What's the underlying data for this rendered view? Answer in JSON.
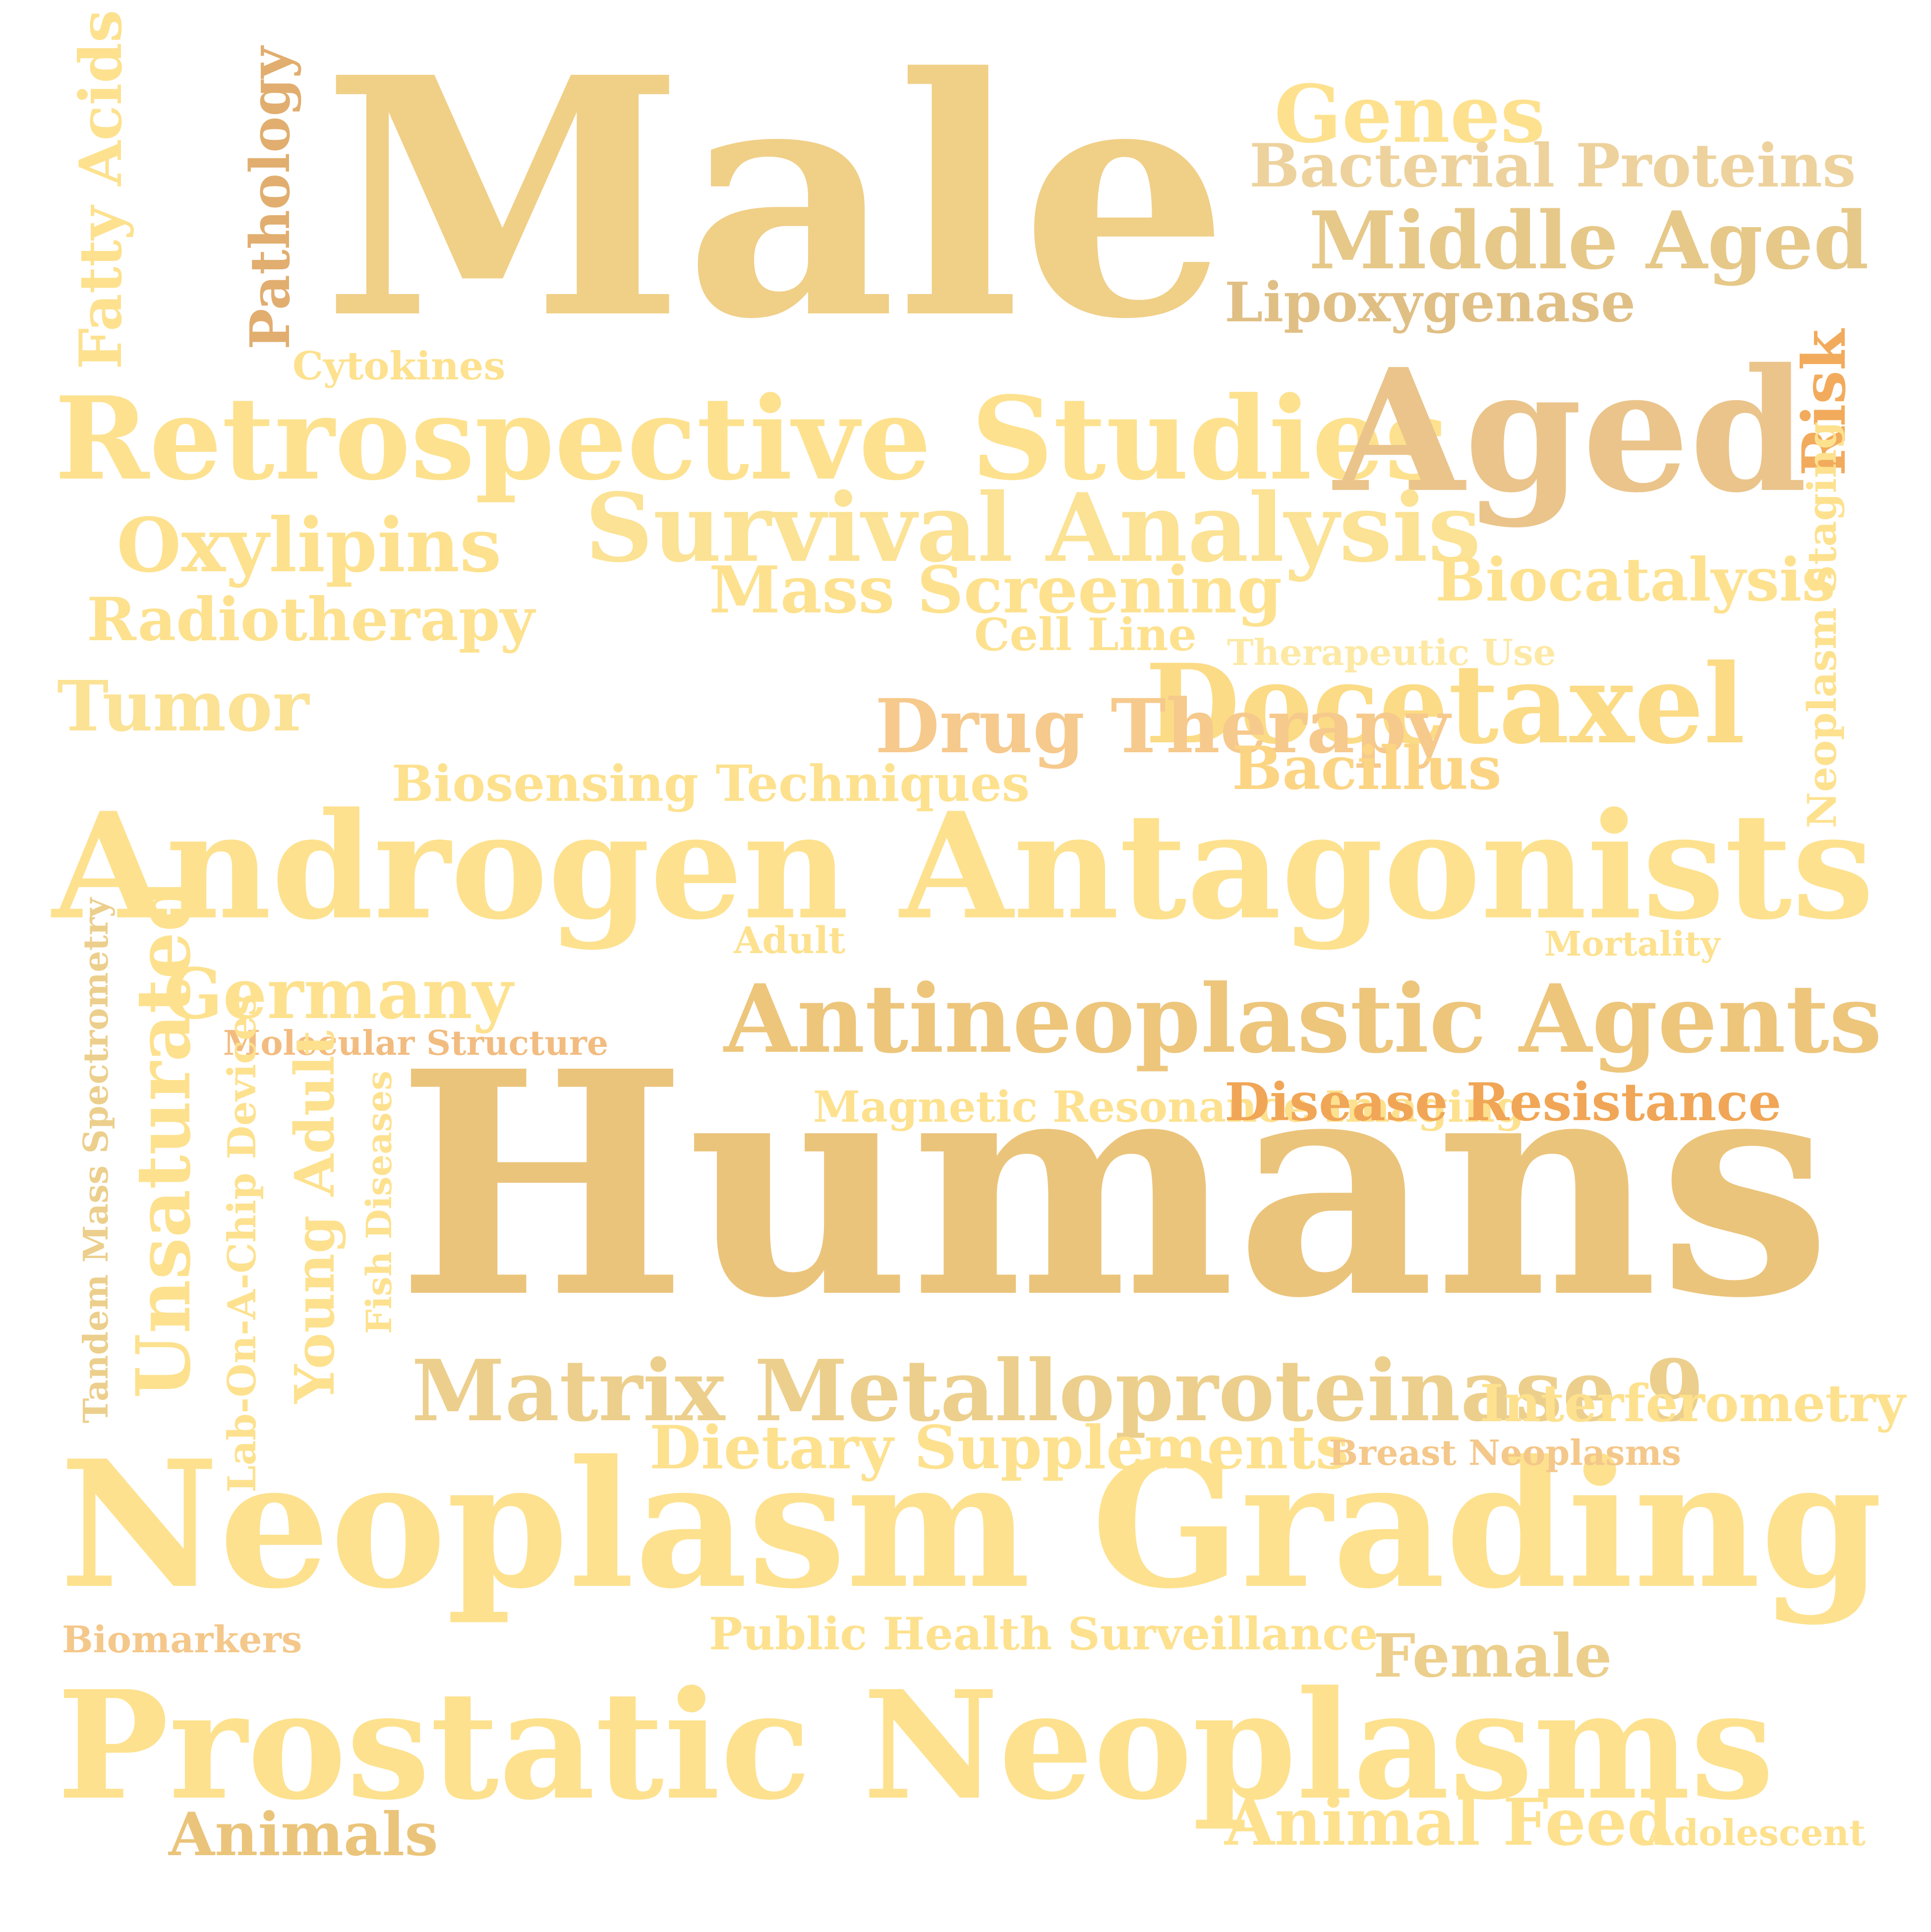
{
  "words": [
    {
      "text": "Male",
      "color": "#f0cf87"
    },
    {
      "text": "Humans",
      "color": "#ebc47b"
    },
    {
      "text": "Androgen Antagonists",
      "color": "#fde18e"
    },
    {
      "text": "Neoplasm Grading",
      "color": "#fde18e"
    },
    {
      "text": "Prostatic Neoplasms",
      "color": "#fde18e"
    },
    {
      "text": "Retrospective Studies",
      "color": "#fde18e"
    },
    {
      "text": "Aged",
      "color": "#eac48b"
    },
    {
      "text": "Antineoplastic Agents",
      "color": "#edc67c"
    },
    {
      "text": "Survival Analysis",
      "color": "#fbe294"
    },
    {
      "text": "Docetaxel",
      "color": "#fbdb85"
    },
    {
      "text": "Matrix Metalloproteinase 9",
      "color": "#eccf8c"
    },
    {
      "text": "Genes",
      "color": "#fde18e"
    },
    {
      "text": "Bacterial Proteins",
      "color": "#edd29d"
    },
    {
      "text": "Middle Aged",
      "color": "#e6c889"
    },
    {
      "text": "Lipoxygenase",
      "color": "#e0bf85"
    },
    {
      "text": "Cytokines",
      "color": "#fde18e"
    },
    {
      "text": "Oxylipins",
      "color": "#fde18e"
    },
    {
      "text": "Radiotherapy",
      "color": "#fde18e"
    },
    {
      "text": "Mass Screening",
      "color": "#fde18e"
    },
    {
      "text": "Cell Line",
      "color": "#fde18e"
    },
    {
      "text": "Biocatalysis",
      "color": "#fde18e"
    },
    {
      "text": "Therapeutic Use",
      "color": "#fde9a5"
    },
    {
      "text": "Tumor",
      "color": "#fbe294"
    },
    {
      "text": "Drug Therapy",
      "color": "#f6c98c"
    },
    {
      "text": "Bacillus",
      "color": "#fcd584"
    },
    {
      "text": "Biosensing Techniques",
      "color": "#fde18e"
    },
    {
      "text": "Adult",
      "color": "#fde18e"
    },
    {
      "text": "Mortality",
      "color": "#fde18e"
    },
    {
      "text": "Germany",
      "color": "#fde18e"
    },
    {
      "text": "Molecular Structure",
      "color": "#f2bc80"
    },
    {
      "text": "Magnetic Resonance Imaging",
      "color": "#fde18e"
    },
    {
      "text": "Disease Resistance",
      "color": "#f0a656"
    },
    {
      "text": "Interferometry",
      "color": "#fde18e"
    },
    {
      "text": "Dietary Supplements",
      "color": "#fde18e"
    },
    {
      "text": "Breast Neoplasms",
      "color": "#f4c78a"
    },
    {
      "text": "Biomarkers",
      "color": "#f4c78a"
    },
    {
      "text": "Public Health Surveillance",
      "color": "#fde18e"
    },
    {
      "text": "Female",
      "color": "#eccf8c"
    },
    {
      "text": "Animals",
      "color": "#ebc47b"
    },
    {
      "text": "Animal Feed",
      "color": "#fde18e"
    },
    {
      "text": "Adolescent",
      "color": "#fde18e"
    },
    {
      "text": "Fatty Acids",
      "color": "#fde18e"
    },
    {
      "text": "Pathology",
      "color": "#e1ae6f"
    },
    {
      "text": "Risk",
      "color": "#f2ab5c"
    },
    {
      "text": "Neoplasm Staging",
      "color": "#fde18e"
    },
    {
      "text": "Tandem Mass Spectrometry",
      "color": "#eccf8c"
    },
    {
      "text": "Unsaturated",
      "color": "#fde18e"
    },
    {
      "text": "Lab-On-A-Chip Devices",
      "color": "#fde18e"
    },
    {
      "text": "Young Adult",
      "color": "#fde18e"
    },
    {
      "text": "Fish Diseases",
      "color": "#fde18e"
    }
  ]
}
